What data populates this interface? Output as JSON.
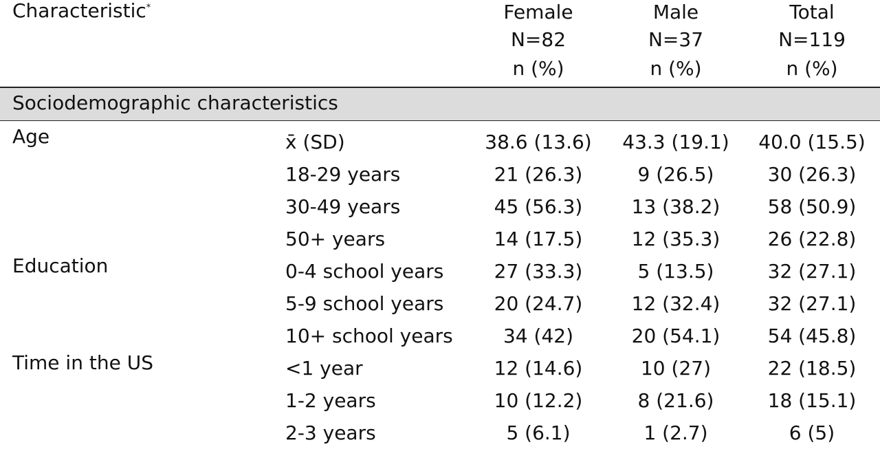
{
  "header": {
    "characteristic": "Characteristic",
    "characteristic_mark": "*",
    "columns": [
      {
        "name": "Female",
        "n": "N=82",
        "unit": "n (%)"
      },
      {
        "name": "Male",
        "n": "N=37",
        "unit": "n (%)"
      },
      {
        "name": "Total",
        "n": "N=119",
        "unit": "n (%)"
      }
    ]
  },
  "section_title": "Sociodemographic characteristics",
  "rows": [
    {
      "group": "Age",
      "level": "x̄ (SD)",
      "female": "38.6 (13.6)",
      "male": "43.3 (19.1)",
      "total": "40.0 (15.5)"
    },
    {
      "group": "",
      "level": "18-29 years",
      "female": "21 (26.3)",
      "male": "9 (26.5)",
      "total": "30 (26.3)"
    },
    {
      "group": "",
      "level": "30-49 years",
      "female": "45 (56.3)",
      "male": "13 (38.2)",
      "total": "58 (50.9)"
    },
    {
      "group": "",
      "level": "50+ years",
      "female": "14 (17.5)",
      "male": "12 (35.3)",
      "total": "26 (22.8)"
    },
    {
      "group": "Education",
      "level": "0-4 school years",
      "female": "27 (33.3)",
      "male": "5 (13.5)",
      "total": "32 (27.1)"
    },
    {
      "group": "",
      "level": "5-9 school years",
      "female": "20 (24.7)",
      "male": "12 (32.4)",
      "total": "32 (27.1)"
    },
    {
      "group": "",
      "level": "10+ school years",
      "female": "34 (42)",
      "male": "20 (54.1)",
      "total": "54 (45.8)"
    },
    {
      "group": "Time in the US",
      "level": "<1 year",
      "female": "12 (14.6)",
      "male": "10 (27)",
      "total": "22 (18.5)"
    },
    {
      "group": "",
      "level": "1-2 years",
      "female": "10 (12.2)",
      "male": "8 (21.6)",
      "total": "18 (15.1)"
    },
    {
      "group": "",
      "level": "2-3 years",
      "female": "5 (6.1)",
      "male": "1 (2.7)",
      "total": "6 (5)"
    }
  ]
}
